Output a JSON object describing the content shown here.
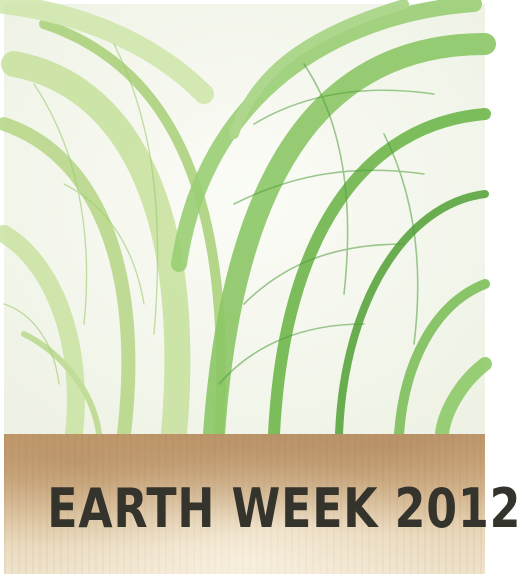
{
  "artwork": {
    "description_icon": "green-fiber-paper-icon",
    "colors": {
      "paper": "#f6f7f0",
      "fiber_light": "#b8d88a",
      "fiber_mid": "#7fbf5a",
      "fiber_dark": "#4f9e3a"
    }
  },
  "banner": {
    "title": "EARTH WEEK 2012",
    "text_color": "#34342c",
    "background_color": "#d8b88e"
  }
}
